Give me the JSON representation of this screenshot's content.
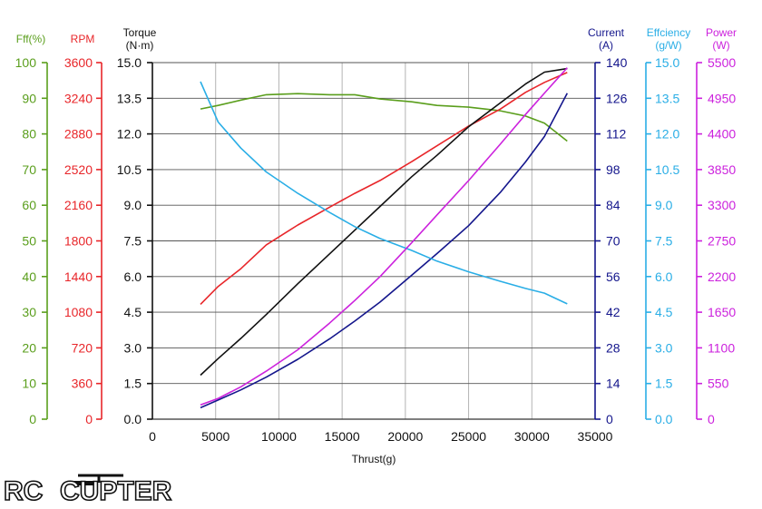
{
  "chart_data": {
    "type": "line",
    "xlabel": "Thrust(g)",
    "xlim": [
      0,
      35000
    ],
    "x_ticks": [
      0,
      5000,
      10000,
      15000,
      20000,
      25000,
      30000,
      35000
    ],
    "axes": [
      {
        "id": "eff_pct",
        "title": [
          "Fff(%)"
        ],
        "color": "#5a9e1c",
        "side": "left",
        "ticks": [
          "0",
          "10",
          "20",
          "30",
          "40",
          "50",
          "60",
          "70",
          "80",
          "90",
          "100"
        ],
        "min": 0,
        "max": 100
      },
      {
        "id": "rpm",
        "title": [
          "RPM"
        ],
        "color": "#e8262a",
        "side": "left",
        "ticks": [
          "0",
          "360",
          "720",
          "1080",
          "1440",
          "1800",
          "2160",
          "2520",
          "2880",
          "3240",
          "3600"
        ],
        "min": 0,
        "max": 3600
      },
      {
        "id": "torque",
        "title": [
          "Torque",
          "(N·m)"
        ],
        "color": "#111111",
        "side": "left",
        "ticks": [
          "0.0",
          "1.5",
          "3.0",
          "4.5",
          "6.0",
          "7.5",
          "9.0",
          "10.5",
          "12.0",
          "13.5",
          "15.0"
        ],
        "min": 0,
        "max": 15
      },
      {
        "id": "current",
        "title": [
          "Current",
          "(A)"
        ],
        "color": "#14168c",
        "side": "right",
        "ticks": [
          "0",
          "14",
          "28",
          "42",
          "56",
          "70",
          "84",
          "98",
          "112",
          "126",
          "140"
        ],
        "min": 0,
        "max": 140
      },
      {
        "id": "efficiency",
        "title": [
          "Effciency",
          "(g/W)"
        ],
        "color": "#2aaee6",
        "side": "right",
        "ticks": [
          "0.0",
          "1.5",
          "3.0",
          "4.5",
          "6.0",
          "7.5",
          "9.0",
          "10.5",
          "12.0",
          "13.5",
          "15.0"
        ],
        "min": 0,
        "max": 15
      },
      {
        "id": "power",
        "title": [
          "Power",
          "(W)"
        ],
        "color": "#cc22dd",
        "side": "right",
        "ticks": [
          "0",
          "550",
          "1100",
          "1650",
          "2200",
          "2750",
          "3300",
          "3850",
          "4400",
          "4950",
          "5500"
        ],
        "min": 0,
        "max": 5500
      }
    ],
    "x": [
      3800,
      5200,
      7000,
      9000,
      11500,
      14000,
      16000,
      18000,
      20500,
      22500,
      25000,
      27500,
      29500,
      31000,
      32800
    ],
    "series": [
      {
        "name": "Fff(%)",
        "axis": "eff_pct",
        "color": "#5a9e1c",
        "values": [
          87,
          88,
          89.5,
          91,
          91.3,
          91,
          91,
          89.8,
          89,
          88,
          87.5,
          86.5,
          85,
          83,
          78
        ]
      },
      {
        "name": "RPM",
        "axis": "rpm",
        "color": "#e8262a",
        "values": [
          1160,
          1340,
          1520,
          1760,
          1960,
          2140,
          2280,
          2410,
          2600,
          2760,
          2960,
          3130,
          3300,
          3400,
          3500
        ]
      },
      {
        "name": "Torque",
        "axis": "torque",
        "color": "#111111",
        "values": [
          1.85,
          2.55,
          3.4,
          4.4,
          5.7,
          6.95,
          7.95,
          8.95,
          10.2,
          11.1,
          12.3,
          13.3,
          14.1,
          14.6,
          14.75
        ]
      },
      {
        "name": "Current",
        "axis": "current",
        "color": "#14168c",
        "values": [
          4.5,
          7.5,
          11.5,
          16.5,
          23.5,
          31.5,
          38.5,
          46,
          56.5,
          65,
          76,
          89,
          101,
          111,
          128
        ]
      },
      {
        "name": "Effciency",
        "axis": "efficiency",
        "color": "#2aaee6",
        "values": [
          14.2,
          12.5,
          11.4,
          10.4,
          9.5,
          8.7,
          8.1,
          7.6,
          7.1,
          6.65,
          6.2,
          5.8,
          5.5,
          5.3,
          4.85
        ]
      },
      {
        "name": "Power",
        "axis": "power",
        "color": "#cc22dd",
        "values": [
          220,
          320,
          500,
          740,
          1070,
          1480,
          1830,
          2200,
          2720,
          3150,
          3680,
          4240,
          4700,
          5030,
          5420
        ]
      }
    ]
  },
  "logo": {
    "text_a": "RC",
    "text_b": "CUPTER"
  }
}
